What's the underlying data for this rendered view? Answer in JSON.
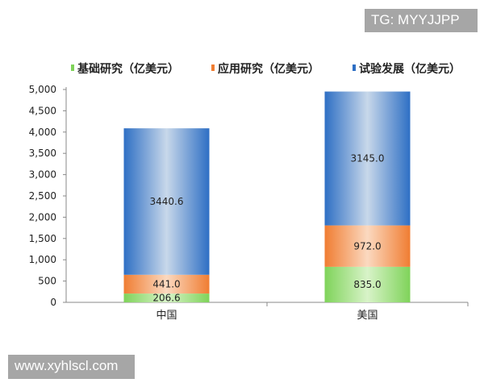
{
  "watermarks": {
    "top": "TG: MYYJJPP",
    "bottom": "www.xyhlscl.com"
  },
  "chart_data": {
    "type": "bar",
    "stacked": true,
    "categories": [
      "中国",
      "美国"
    ],
    "series": [
      {
        "name": "基础研究（亿美元）",
        "values": [
          206.6,
          835.0
        ],
        "labels": [
          "206.6",
          "835.0"
        ],
        "color": "#7fd35a"
      },
      {
        "name": "应用研究（亿美元）",
        "values": [
          441.0,
          972.0
        ],
        "labels": [
          "441.0",
          "972.0"
        ],
        "color": "#f07d32"
      },
      {
        "name": "试验发展（亿美元）",
        "values": [
          3440.6,
          3145.0
        ],
        "labels": [
          "3440.6",
          "3145.0"
        ],
        "color": "#2e6fc4"
      }
    ],
    "ylim": [
      0,
      5000
    ],
    "yticks": [
      "0",
      "500",
      "1,000",
      "1,500",
      "2,000",
      "2,500",
      "3,000",
      "3,500",
      "4,000",
      "4,500",
      "5,000"
    ],
    "legend_position": "top",
    "grid": false
  }
}
